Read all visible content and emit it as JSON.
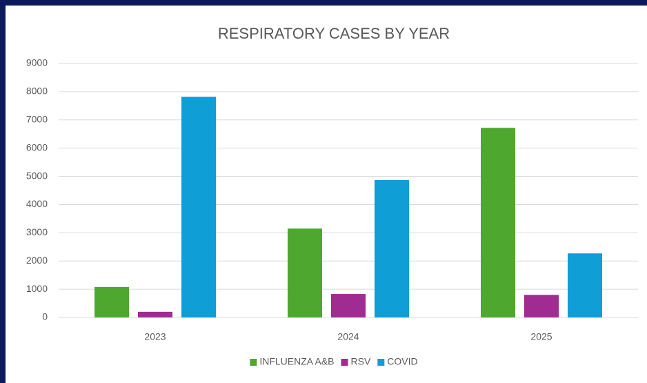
{
  "chart_data": {
    "type": "bar",
    "title": "RESPIRATORY CASES BY YEAR",
    "categories": [
      "2023",
      "2024",
      "2025"
    ],
    "series": [
      {
        "name": "INFLUENZA A&B",
        "color": "#4ea72e",
        "values": [
          1080,
          3150,
          6720
        ]
      },
      {
        "name": "RSV",
        "color": "#a02b93",
        "values": [
          200,
          830,
          800
        ]
      },
      {
        "name": "COVID",
        "color": "#0f9ed5",
        "values": [
          7820,
          4870,
          2270
        ]
      }
    ],
    "ylim": [
      0,
      9000
    ],
    "yticks": [
      0,
      1000,
      2000,
      3000,
      4000,
      5000,
      6000,
      7000,
      8000,
      9000
    ],
    "grid": true,
    "legend": "bottom"
  }
}
